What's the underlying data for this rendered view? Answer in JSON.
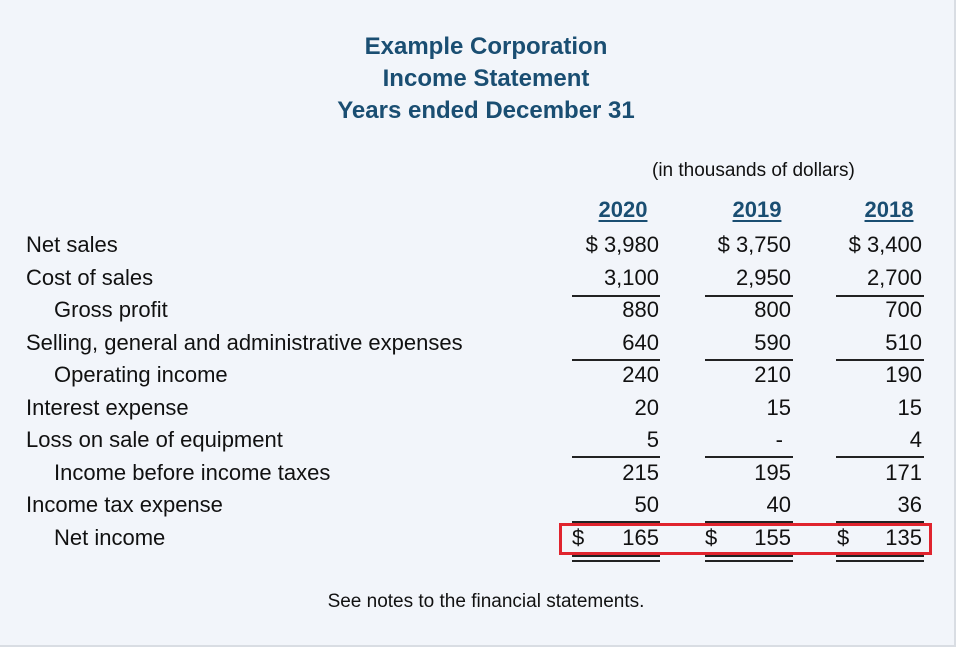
{
  "title_lines": [
    "Example Corporation",
    "Income Statement",
    "Years ended December 31"
  ],
  "units_note": "(in thousands of dollars)",
  "years": [
    "2020",
    "2019",
    "2018"
  ],
  "rows": [
    {
      "label": "Net sales",
      "values": [
        "$ 3,980",
        "$ 3,750",
        "$ 3,400"
      ]
    },
    {
      "label": "Cost of sales",
      "values": [
        "3,100",
        "2,950",
        "2,700"
      ]
    },
    {
      "label": "Gross profit",
      "values": [
        "880",
        "800",
        "700"
      ]
    },
    {
      "label": "Selling, general and administrative expenses",
      "values": [
        "640",
        "590",
        "510"
      ]
    },
    {
      "label": "Operating income",
      "values": [
        "240",
        "210",
        "190"
      ]
    },
    {
      "label": "Interest expense",
      "values": [
        "20",
        "15",
        "15"
      ]
    },
    {
      "label": "Loss on sale of equipment",
      "values": [
        "5",
        "-",
        "4"
      ]
    },
    {
      "label": "Income before income taxes",
      "values": [
        "215",
        "195",
        "171"
      ]
    },
    {
      "label": "Income tax expense",
      "values": [
        "50",
        "40",
        "36"
      ]
    },
    {
      "label": "Net income",
      "currency": "$",
      "values": [
        "165",
        "155",
        "135"
      ]
    }
  ],
  "footnote": "See notes to the financial statements.",
  "colors": {
    "heading": "#1a4e72",
    "highlight": "#e0242e",
    "background": "#f2f5fa"
  }
}
